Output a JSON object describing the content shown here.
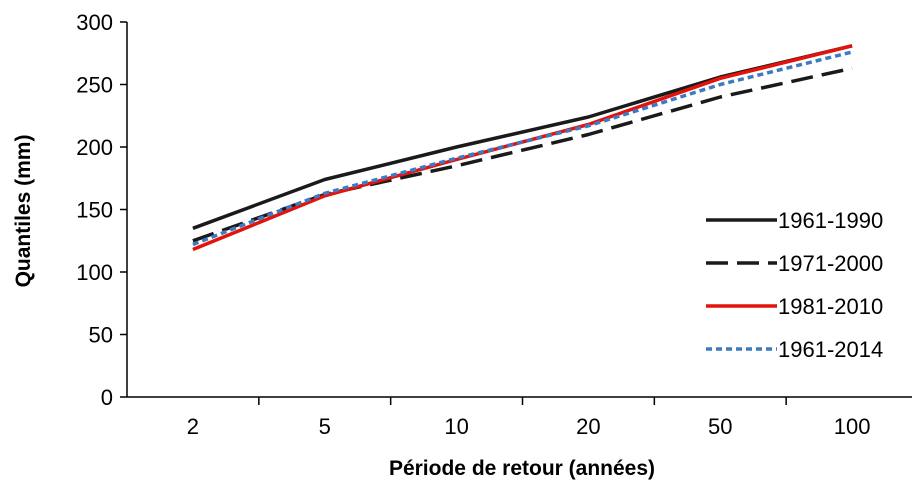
{
  "chart_data": {
    "type": "line",
    "title": "",
    "xlabel": "Période de retour (années)",
    "ylabel": "Quantiles (mm)",
    "categories": [
      "2",
      "5",
      "10",
      "20",
      "50",
      "100"
    ],
    "ylim": [
      0,
      300
    ],
    "yticks": [
      "0",
      "50",
      "100",
      "150",
      "200",
      "250",
      "300"
    ],
    "grid": false,
    "legend_position": "right",
    "series": [
      {
        "name": "1961-1990",
        "values": [
          135,
          174,
          200,
          224,
          256,
          281
        ],
        "color": "#1a1a1a",
        "style": "solid"
      },
      {
        "name": "1971-2000",
        "values": [
          125,
          162,
          185,
          210,
          240,
          263
        ],
        "color": "#1a1a1a",
        "style": "long-dash"
      },
      {
        "name": "1981-2010",
        "values": [
          118,
          161,
          190,
          218,
          255,
          281
        ],
        "color": "#e3120b",
        "style": "solid"
      },
      {
        "name": "1961-2014",
        "values": [
          122,
          163,
          191,
          217,
          250,
          276
        ],
        "color": "#3d7ac4",
        "style": "dotted"
      }
    ]
  }
}
